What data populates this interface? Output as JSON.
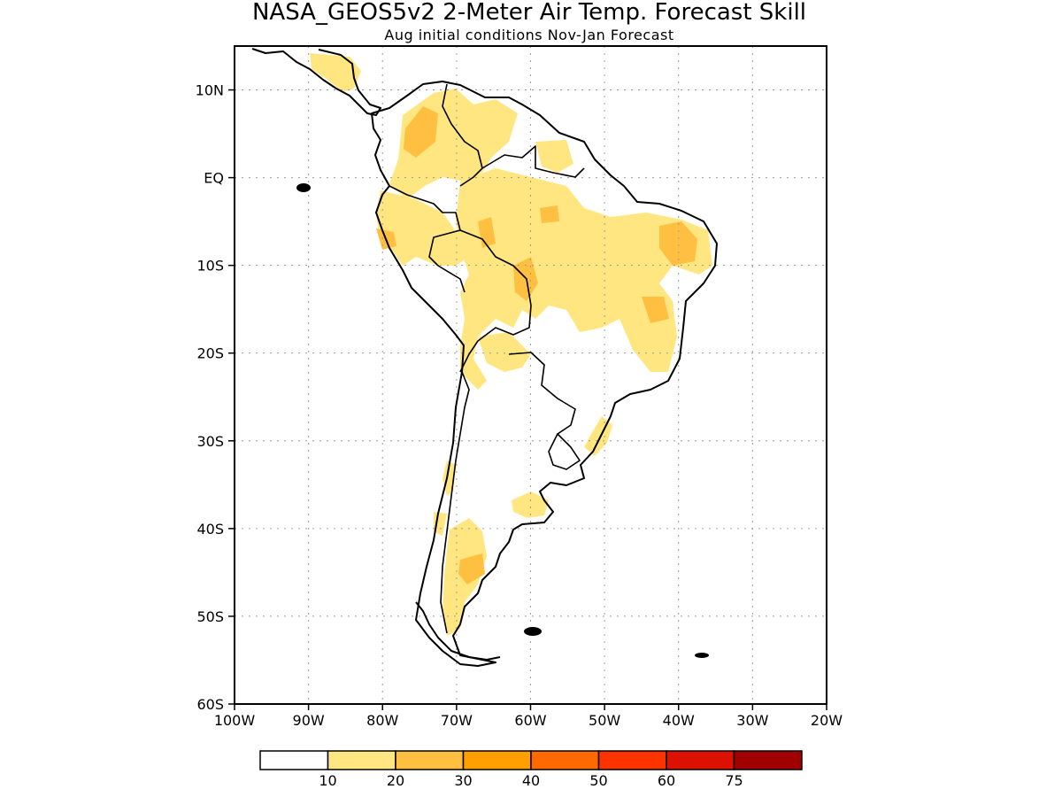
{
  "title": "NASA_GEOS5v2 2-Meter Air Temp. Forecast Skill",
  "subtitle": "Aug initial conditions  Nov-Jan Forecast",
  "axes": {
    "lon_ticks": [
      "100W",
      "90W",
      "80W",
      "70W",
      "60W",
      "50W",
      "40W",
      "30W",
      "20W"
    ],
    "lat_ticks": [
      "10N",
      "EQ",
      "10S",
      "20S",
      "30S",
      "40S",
      "50S",
      "60S"
    ],
    "lon_range": [
      -100,
      -20
    ],
    "lat_range": [
      -60,
      15
    ],
    "grid": true
  },
  "colorbar": {
    "colors": [
      "#ffffff",
      "#ffe680",
      "#ffbf40",
      "#ff9f00",
      "#ff6a00",
      "#ff3300",
      "#dd1100",
      "#a00000"
    ],
    "labels": [
      "10",
      "20",
      "30",
      "40",
      "50",
      "60",
      "75"
    ]
  },
  "chart_data": {
    "type": "heatmap",
    "title": "NASA_GEOS5v2 2-Meter Air Temp. Forecast Skill",
    "subtitle": "Aug initial conditions  Nov-Jan Forecast",
    "x_ticks": [
      "100W",
      "90W",
      "80W",
      "70W",
      "60W",
      "50W",
      "40W",
      "30W",
      "20W"
    ],
    "y_ticks": [
      "10N",
      "EQ",
      "10S",
      "20S",
      "30S",
      "40S",
      "50S",
      "60S"
    ],
    "xlim": [
      -100,
      -20
    ],
    "ylim": [
      -60,
      15
    ],
    "legend_levels": [
      10,
      20,
      30,
      40,
      50,
      60,
      75
    ],
    "legend_placement": "bottom"
  }
}
